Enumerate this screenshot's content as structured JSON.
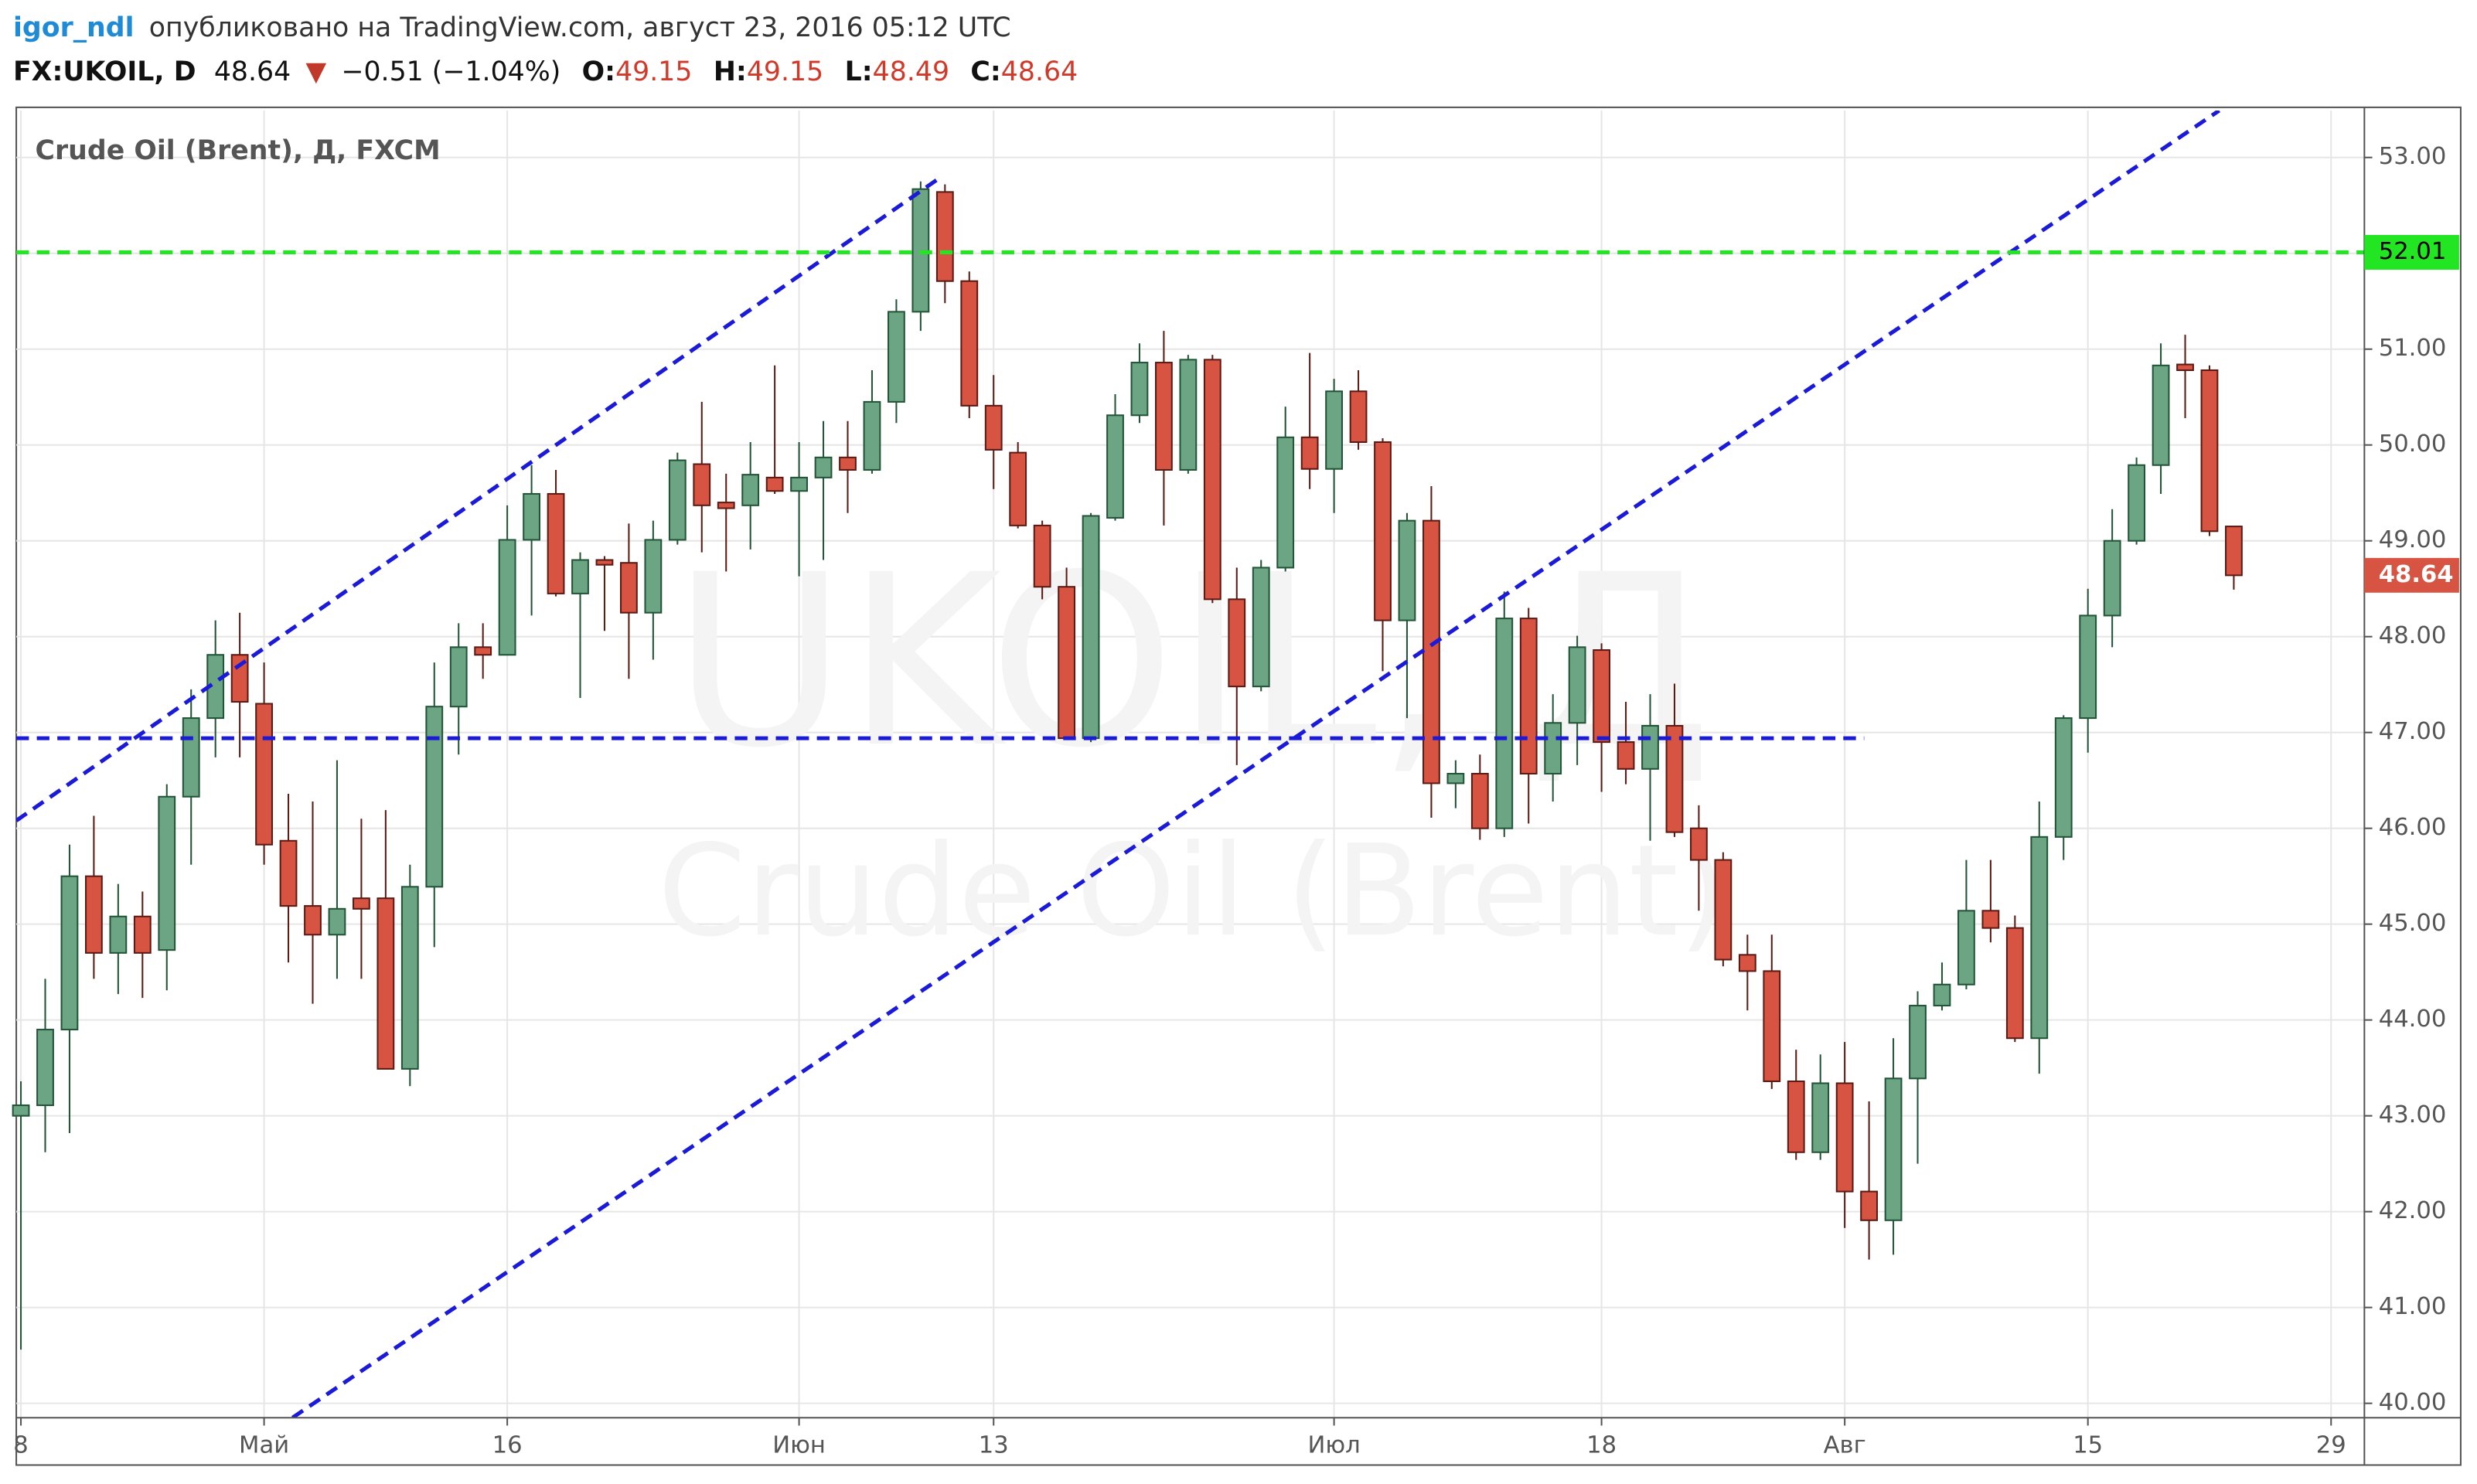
{
  "header": {
    "author": "igor_ndl",
    "published": "опубликовано на TradingView.com, август 23, 2016 05:12 UTC",
    "symbol": "FX:UKOIL, D",
    "change": "−0.51 (−1.04%)",
    "o_label": "O:",
    "h_label": "H:",
    "l_label": "L:",
    "c_label": "C:"
  },
  "chart_data": {
    "type": "candlestick",
    "legend": "Crude Oil (Brent), Д, FXCM",
    "watermark": [
      "UKOIL, Д",
      "Crude Oil (Brent)"
    ],
    "up_color": "#6ba583",
    "up_border": "#225437",
    "down_color": "#d75442",
    "down_border": "#5b1a13",
    "grid": true,
    "open": [
      43.0,
      43.11,
      43.9,
      45.5,
      44.7,
      45.08,
      44.73,
      46.33,
      47.15,
      47.81,
      47.3,
      45.87,
      45.19,
      44.89,
      45.27,
      45.27,
      43.49,
      45.39,
      47.27,
      47.89,
      47.81,
      49.01,
      49.49,
      48.45,
      48.8,
      48.77,
      48.25,
      49.01,
      49.8,
      49.4,
      49.37,
      49.66,
      49.52,
      49.66,
      49.87,
      49.74,
      50.45,
      51.39,
      52.64,
      51.71,
      50.41,
      49.92,
      49.16,
      48.52,
      46.94,
      49.24,
      50.31,
      50.86,
      49.74,
      50.89,
      48.39,
      47.48,
      48.72,
      50.08,
      49.75,
      50.56,
      50.03,
      48.17,
      49.21,
      46.47,
      46.57,
      46.0,
      48.19,
      46.57,
      47.1,
      47.86,
      46.9,
      46.62,
      47.07,
      46.0,
      45.67,
      44.68,
      44.51,
      43.36,
      42.62,
      43.34,
      42.21,
      41.91,
      43.39,
      44.15,
      44.37,
      45.14,
      44.96,
      43.81,
      45.91,
      47.15,
      48.22,
      49.0,
      49.79,
      50.84,
      50.78,
      49.15
    ],
    "high": [
      43.36,
      44.43,
      45.83,
      46.13,
      45.42,
      45.34,
      46.46,
      47.45,
      48.17,
      48.25,
      47.73,
      46.36,
      46.28,
      46.71,
      46.1,
      46.19,
      45.62,
      47.73,
      48.14,
      48.14,
      49.37,
      49.79,
      49.74,
      48.88,
      48.84,
      49.18,
      49.21,
      49.92,
      50.45,
      49.7,
      50.03,
      50.83,
      50.03,
      50.25,
      50.25,
      50.78,
      51.52,
      52.75,
      52.72,
      51.81,
      50.73,
      50.03,
      49.21,
      48.72,
      49.29,
      50.53,
      51.06,
      51.19,
      50.94,
      50.94,
      48.72,
      48.8,
      50.4,
      50.96,
      50.69,
      50.78,
      50.07,
      49.29,
      49.57,
      46.71,
      46.77,
      48.47,
      48.3,
      47.4,
      48.01,
      47.93,
      47.32,
      47.4,
      47.51,
      46.24,
      45.75,
      44.89,
      44.89,
      43.69,
      43.64,
      43.77,
      43.15,
      43.81,
      44.3,
      44.6,
      45.67,
      45.67,
      45.09,
      46.28,
      47.18,
      48.5,
      49.33,
      49.87,
      51.06,
      51.15,
      50.83,
      49.15
    ],
    "low": [
      40.56,
      42.62,
      42.82,
      44.43,
      44.27,
      44.23,
      44.31,
      45.62,
      46.74,
      46.74,
      45.62,
      44.6,
      44.17,
      44.43,
      44.43,
      43.49,
      43.31,
      44.76,
      46.77,
      47.56,
      47.81,
      48.22,
      48.42,
      47.36,
      48.06,
      47.56,
      47.76,
      48.96,
      48.88,
      48.68,
      48.91,
      49.49,
      48.63,
      48.8,
      49.29,
      49.7,
      50.23,
      51.19,
      51.48,
      50.28,
      49.54,
      49.13,
      48.39,
      46.94,
      46.9,
      49.21,
      50.23,
      49.16,
      49.7,
      48.35,
      46.66,
      47.43,
      48.68,
      49.54,
      49.29,
      49.95,
      47.64,
      47.15,
      46.11,
      46.21,
      45.88,
      45.91,
      46.05,
      46.28,
      46.66,
      46.38,
      46.46,
      45.87,
      45.91,
      45.14,
      44.56,
      44.1,
      43.28,
      42.54,
      42.54,
      41.83,
      41.5,
      41.55,
      42.5,
      44.1,
      44.32,
      44.81,
      43.77,
      43.44,
      45.67,
      46.79,
      47.89,
      48.96,
      49.49,
      50.28,
      49.05,
      48.49
    ],
    "close": [
      43.11,
      43.9,
      45.5,
      44.7,
      45.08,
      44.7,
      46.33,
      47.15,
      47.81,
      47.32,
      45.83,
      45.19,
      44.89,
      45.16,
      45.16,
      43.49,
      45.39,
      47.27,
      47.89,
      47.81,
      49.01,
      49.49,
      48.45,
      48.8,
      48.75,
      48.25,
      49.01,
      49.84,
      49.37,
      49.34,
      49.69,
      49.52,
      49.66,
      49.87,
      49.74,
      50.45,
      51.39,
      52.67,
      51.71,
      50.41,
      49.95,
      49.16,
      48.52,
      46.94,
      49.26,
      50.31,
      50.86,
      49.74,
      50.89,
      48.39,
      47.48,
      48.72,
      50.08,
      49.75,
      50.56,
      50.03,
      48.17,
      49.21,
      46.47,
      46.57,
      46.0,
      48.19,
      46.57,
      47.1,
      47.89,
      46.9,
      46.62,
      47.07,
      45.96,
      45.67,
      44.63,
      44.51,
      43.36,
      42.62,
      43.34,
      42.21,
      41.91,
      43.39,
      44.15,
      44.37,
      45.14,
      44.96,
      43.81,
      45.91,
      47.15,
      48.22,
      49.0,
      49.79,
      50.83,
      50.78,
      49.1,
      48.64
    ],
    "xlim": [
      -0.19,
      96.37
    ],
    "xticks": [
      {
        "value": 0,
        "label": "8"
      },
      {
        "value": 10,
        "label": "Май"
      },
      {
        "value": 20,
        "label": "16"
      },
      {
        "value": 32,
        "label": "Июн"
      },
      {
        "value": 40,
        "label": "13"
      },
      {
        "value": 54,
        "label": "Июл"
      },
      {
        "value": 65,
        "label": "18"
      },
      {
        "value": 75,
        "label": "Авг"
      },
      {
        "value": 85,
        "label": "15"
      },
      {
        "value": 95,
        "label": "29"
      }
    ],
    "ylim": [
      39.85,
      53.49
    ],
    "yticks": [
      {
        "value": 40,
        "label": "40.00"
      },
      {
        "value": 41,
        "label": "41.00"
      },
      {
        "value": 42,
        "label": "42.00"
      },
      {
        "value": 43,
        "label": "43.00"
      },
      {
        "value": 44,
        "label": "44.00"
      },
      {
        "value": 45,
        "label": "45.00"
      },
      {
        "value": 46,
        "label": "46.00"
      },
      {
        "value": 47,
        "label": "47.00"
      },
      {
        "value": 48,
        "label": "48.00"
      },
      {
        "value": 49,
        "label": "49.00"
      },
      {
        "value": 50,
        "label": "50.00"
      },
      {
        "value": 51,
        "label": "51.00"
      },
      {
        "value": 52,
        "label": "52.00"
      },
      {
        "value": 53,
        "label": "53.00"
      }
    ],
    "hlines": [
      {
        "value": 52.01,
        "color": "#22e622"
      }
    ],
    "trend_lines": [
      {
        "x": [
          -0.19,
          37.8
        ],
        "y": [
          46.08,
          52.79
        ],
        "color": "#1a1ad8"
      },
      {
        "x": [
          11.17,
          90.4
        ],
        "y": [
          39.85,
          53.49
        ],
        "color": "#1a1ad8"
      },
      {
        "x": [
          -0.19,
          75.8
        ],
        "y": [
          46.94,
          46.94
        ],
        "color": "#1a1ad8"
      }
    ]
  }
}
